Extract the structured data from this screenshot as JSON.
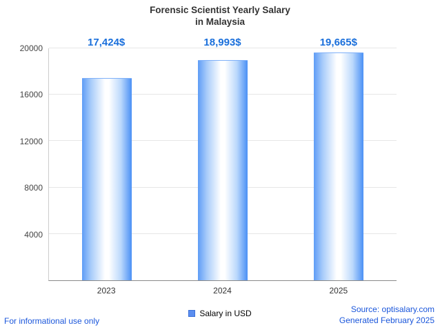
{
  "chart_data": {
    "type": "bar",
    "title_line1": "Forensic Scientist Yearly Salary",
    "title_line2": "in Malaysia",
    "categories": [
      "2023",
      "2024",
      "2025"
    ],
    "values": [
      17424,
      18993,
      19665
    ],
    "value_labels": [
      "17,424$",
      "18,993$",
      "19,665$"
    ],
    "ylim": [
      0,
      20000
    ],
    "yticks": [
      4000,
      8000,
      12000,
      16000,
      20000
    ],
    "grid": true,
    "legend_label": "Salary in USD",
    "legend_position": "bottom",
    "xlabel": "",
    "ylabel": ""
  },
  "footer": {
    "left": "For informational use only",
    "source": "Source: optisalary.com",
    "generated": "Generated February 2025"
  },
  "colors": {
    "accent_text": "#1a6fdb",
    "footer_text": "#1a56db",
    "bar_edge_blue": "#4a90f5",
    "bar_center": "#ffffff",
    "title_text": "#333333",
    "gridline": "#e6e6e6",
    "axis_line": "#888888"
  }
}
